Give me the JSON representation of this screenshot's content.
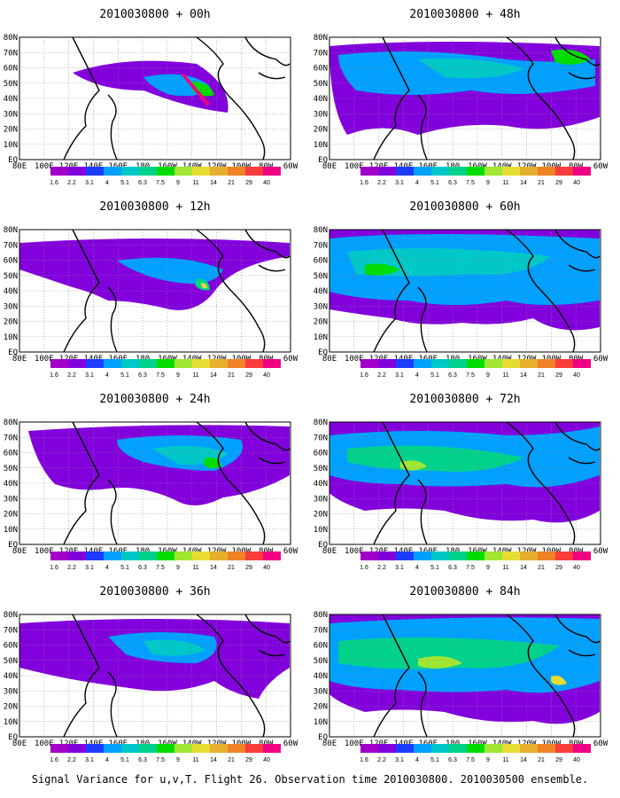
{
  "colors": {
    "levels": [
      "#a000c8",
      "#8200dc",
      "#1e3cff",
      "#00a0ff",
      "#00c8c8",
      "#00d28c",
      "#00dc00",
      "#a0e632",
      "#e6dc32",
      "#e6af2d",
      "#f08228",
      "#fa3c3c",
      "#f00082"
    ],
    "coast": "#000000",
    "grid": "#8c8c8c"
  },
  "colorbar_labels": [
    "1.6",
    "2.2",
    "3.1",
    "4",
    "5.1",
    "6.3",
    "7.5",
    "9",
    "11",
    "14",
    "21",
    "29",
    "40"
  ],
  "lat_labels": [
    "80N",
    "70N",
    "60N",
    "50N",
    "40N",
    "30N",
    "20N",
    "10N",
    "EQ"
  ],
  "lon_labels": [
    "80E",
    "100E",
    "120E",
    "140E",
    "160E",
    "180",
    "160W",
    "140W",
    "120W",
    "100W",
    "80W",
    "60W"
  ],
  "panels": [
    {
      "title": "2010030800 + 00h"
    },
    {
      "title": "2010030800 + 48h"
    },
    {
      "title": "2010030800 + 12h"
    },
    {
      "title": "2010030800 + 60h"
    },
    {
      "title": "2010030800 + 24h"
    },
    {
      "title": "2010030800 + 72h"
    },
    {
      "title": "2010030800 + 36h"
    },
    {
      "title": "2010030800 + 84h"
    }
  ],
  "caption": "Signal Variance for u,v,T. Flight 26. Observation time 2010030800. 2010030500 ensemble.",
  "chart_data": {
    "type": "heatmap",
    "description_fields": "signal variance contour-filled maps over North Pacific",
    "x_axis_range": [
      "80E",
      "60W"
    ],
    "y_axis_range": [
      "EQ",
      "80N"
    ],
    "contour_levels": [
      1.6,
      2.2,
      3.1,
      4,
      5.1,
      6.3,
      7.5,
      9,
      11,
      14,
      21,
      29,
      40
    ],
    "forecast_hours": [
      "00h",
      "12h",
      "24h",
      "36h",
      "48h",
      "60h",
      "72h",
      "84h"
    ],
    "grid": true
  }
}
